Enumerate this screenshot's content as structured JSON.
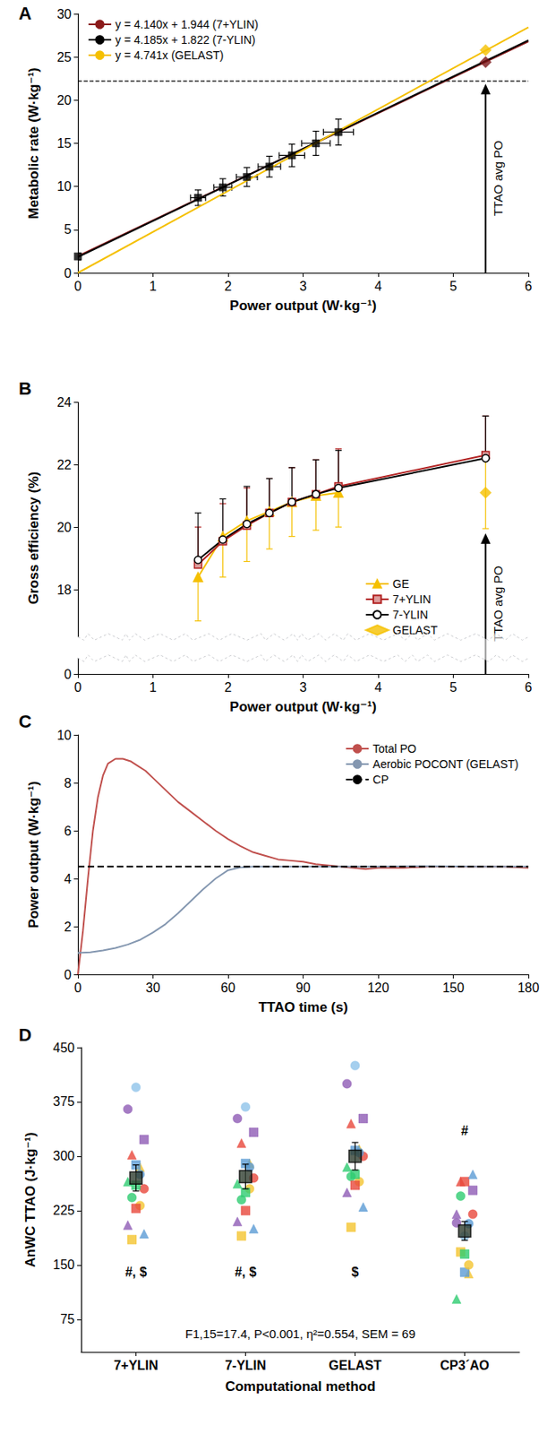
{
  "chart_data": [
    {
      "type": "scatter",
      "title": "A",
      "x_label": "Power output (W·kg⁻¹)",
      "y_label": "Metabolic rate (W·kg⁻¹)",
      "xlim": [
        0,
        6
      ],
      "xticks": [
        0,
        1,
        2,
        3,
        4,
        5,
        6
      ],
      "ylim": [
        0,
        30
      ],
      "yticks": [
        0,
        5,
        10,
        15,
        20,
        25,
        30
      ],
      "grid": false,
      "legend": "upper left",
      "series": [
        {
          "type": "line",
          "name": "y = 4.140x + 1.944 (7+YLIN)",
          "color": "#8b1a1a",
          "marker": "none",
          "line_style": "solid",
          "x": [
            0,
            6
          ],
          "values": [
            1.944,
            26.784
          ]
        },
        {
          "type": "line",
          "name": "y = 4.185x + 1.822 (7-YLIN)",
          "color": "#000000",
          "marker": "none",
          "line_style": "solid",
          "x": [
            0,
            6
          ],
          "values": [
            1.822,
            26.932
          ]
        },
        {
          "type": "line",
          "name": "y = 4.741x (GELAST)",
          "color": "#f5c000",
          "marker": "none",
          "line_style": "solid",
          "x": [
            0,
            6
          ],
          "values": [
            0,
            28.446
          ]
        },
        {
          "type": "scatter",
          "color": "#000000",
          "marker": "square",
          "x": [
            0,
            1.6,
            1.93,
            2.25,
            2.55,
            2.85,
            3.17,
            3.47
          ],
          "values": [
            1.9,
            8.7,
            9.9,
            11.1,
            12.3,
            13.6,
            15.0,
            16.3
          ],
          "y_errors": [
            0.4,
            0.9,
            1.0,
            1.1,
            1.2,
            1.3,
            1.4,
            1.5
          ],
          "x_errors": [
            0,
            0.1,
            0.12,
            0.14,
            0.15,
            0.17,
            0.19,
            0.2
          ]
        },
        {
          "type": "scatter",
          "color": "#f5c000",
          "marker": "diamond",
          "x": [
            5.43
          ],
          "values": [
            25.8
          ]
        },
        {
          "type": "scatter",
          "color": "#7b1416",
          "marker": "diamond",
          "x": [
            5.43
          ],
          "values": [
            24.4
          ]
        }
      ],
      "reference_lines": [
        {
          "y": 22.2,
          "line_style": "dashed",
          "color": "#000000"
        }
      ],
      "annotations": [
        {
          "text": "TTAO avg PO",
          "x": 5.43,
          "y_from": 0,
          "y_to": 21.9
        }
      ]
    },
    {
      "type": "line",
      "title": "B",
      "x_label": "Power output (W·kg⁻¹)",
      "y_label": "Gross efficiency (%)",
      "xlim": [
        0,
        6
      ],
      "xticks": [
        0,
        1,
        2,
        3,
        4,
        5,
        6
      ],
      "ylim": [
        0,
        24
      ],
      "yticks": [
        0,
        18,
        20,
        22,
        24
      ],
      "grid": false,
      "legend": "lower right",
      "series": [
        {
          "type": "line",
          "name": "GE",
          "color": "#f5c000",
          "marker": "triangle",
          "line_style": "solid",
          "x": [
            1.6,
            1.93,
            2.25,
            2.55,
            2.85,
            3.17,
            3.47
          ],
          "values": [
            18.4,
            19.7,
            20.2,
            20.5,
            20.8,
            21.0,
            21.1
          ],
          "errors": [
            1.4,
            1.3,
            1.3,
            1.2,
            1.1,
            1.1,
            1.1
          ]
        },
        {
          "type": "line",
          "name": "7+YLIN",
          "color": "#b22222",
          "marker": "square",
          "line_style": "solid",
          "x": [
            1.6,
            1.93,
            2.25,
            2.55,
            2.85,
            3.17,
            3.47,
            5.43
          ],
          "values": [
            18.8,
            19.55,
            20.05,
            20.45,
            20.8,
            21.05,
            21.3,
            22.3
          ],
          "errors": [
            1.2,
            1.2,
            1.2,
            1.1,
            1.1,
            1.1,
            1.2,
            1.25
          ]
        },
        {
          "type": "line",
          "name": "7-YLIN",
          "color": "#000000",
          "marker": "circle",
          "line_style": "solid",
          "x": [
            1.6,
            1.93,
            2.25,
            2.55,
            2.85,
            3.17,
            3.47,
            5.43
          ],
          "values": [
            18.95,
            19.6,
            20.1,
            20.45,
            20.8,
            21.05,
            21.25,
            22.2
          ],
          "errors": [
            1.5,
            1.3,
            1.2,
            1.1,
            1.1,
            1.1,
            1.2,
            1.35
          ]
        },
        {
          "type": "scatter",
          "name": "GELAST",
          "color": "#f5c000",
          "marker": "diamond",
          "x": [
            5.43
          ],
          "values": [
            21.1
          ],
          "errors": [
            1.15
          ]
        }
      ],
      "annotations": [
        {
          "text": "TTAO avg PO",
          "x": 5.43,
          "y_from": 0,
          "y_to": 19.8
        }
      ]
    },
    {
      "type": "line",
      "title": "C",
      "x_label": "TTAO time (s)",
      "y_label": "Power output (W·kg⁻¹)",
      "xlim": [
        0,
        180
      ],
      "xticks": [
        0,
        30,
        60,
        90,
        120,
        150,
        180
      ],
      "ylim": [
        0,
        10
      ],
      "yticks": [
        0,
        2,
        4,
        6,
        8,
        10
      ],
      "grid": false,
      "legend": "upper right",
      "series": [
        {
          "type": "line",
          "name": "Total PO",
          "color": "#c0504d",
          "marker": "none",
          "line_style": "solid",
          "x": [
            0,
            2,
            4,
            6,
            8,
            10,
            12,
            15,
            18,
            21,
            24,
            27,
            30,
            35,
            40,
            45,
            50,
            55,
            60,
            65,
            70,
            75,
            80,
            85,
            90,
            95,
            100,
            105,
            110,
            115,
            120,
            130,
            140,
            150,
            160,
            170,
            180
          ],
          "values": [
            0,
            1.8,
            4.0,
            6.0,
            7.4,
            8.3,
            8.8,
            9.0,
            9.0,
            8.9,
            8.7,
            8.5,
            8.2,
            7.7,
            7.2,
            6.8,
            6.4,
            6.0,
            5.65,
            5.35,
            5.1,
            4.95,
            4.8,
            4.75,
            4.7,
            4.6,
            4.55,
            4.5,
            4.45,
            4.4,
            4.45,
            4.45,
            4.5,
            4.5,
            4.5,
            4.5,
            4.45
          ]
        },
        {
          "type": "line",
          "name": "Aerobic POCONT (GELAST)",
          "color": "#8497b0",
          "marker": "none",
          "line_style": "solid",
          "x": [
            0,
            5,
            10,
            15,
            20,
            25,
            30,
            35,
            40,
            45,
            50,
            55,
            60,
            65,
            70,
            80,
            100,
            120,
            140,
            160,
            180
          ],
          "values": [
            0.9,
            0.92,
            1.0,
            1.1,
            1.25,
            1.45,
            1.75,
            2.1,
            2.55,
            3.05,
            3.55,
            4.0,
            4.35,
            4.47,
            4.5,
            4.5,
            4.5,
            4.5,
            4.52,
            4.5,
            4.5
          ]
        },
        {
          "type": "line",
          "name": "CP",
          "color": "#000000",
          "marker": "none",
          "line_style": "dashed",
          "x": [
            0,
            180
          ],
          "values": [
            4.5,
            4.5
          ]
        }
      ]
    },
    {
      "type": "scatter",
      "title": "D",
      "x_label": "Computational method",
      "y_label": "AnWC TTAO (J·kg⁻¹)",
      "categories": [
        "7+YLIN",
        "7-YLIN",
        "GELAST",
        "CP3´AO"
      ],
      "ylim": [
        30,
        450
      ],
      "yticks": [
        75,
        150,
        225,
        300,
        375,
        450
      ],
      "grid": false,
      "series": [
        {
          "color": "#8ec3ea",
          "marker": "circle",
          "values": [
            395,
            368,
            425,
            190
          ]
        },
        {
          "color": "#8e5bb5",
          "marker": "circle",
          "values": [
            365,
            352,
            400,
            208
          ]
        },
        {
          "color": "#8e5bb5",
          "marker": "square",
          "values": [
            323,
            333,
            352,
            253
          ]
        },
        {
          "color": "#e8473b",
          "marker": "triangle",
          "values": [
            302,
            318,
            345,
            265
          ]
        },
        {
          "color": "#f4c430",
          "marker": "triangle",
          "values": [
            285,
            290,
            310,
            138
          ]
        },
        {
          "color": "#5b9bd5",
          "marker": "square",
          "values": [
            288,
            290,
            308,
            140
          ]
        },
        {
          "color": "#2ecc71",
          "marker": "triangle",
          "values": [
            265,
            262,
            285,
            103
          ]
        },
        {
          "color": "#e8473b",
          "marker": "circle",
          "values": [
            255,
            270,
            300,
            220
          ]
        },
        {
          "color": "#2ecc71",
          "marker": "circle",
          "values": [
            243,
            240,
            272,
            245
          ]
        },
        {
          "color": "#f4c430",
          "marker": "circle",
          "values": [
            232,
            255,
            265,
            150
          ]
        },
        {
          "color": "#e8473b",
          "marker": "square",
          "values": [
            228,
            225,
            260,
            265
          ]
        },
        {
          "color": "#8e5bb5",
          "marker": "triangle",
          "values": [
            205,
            210,
            250,
            220
          ]
        },
        {
          "color": "#5b9bd5",
          "marker": "triangle",
          "values": [
            193,
            200,
            230,
            275
          ]
        },
        {
          "color": "#f4c430",
          "marker": "square",
          "values": [
            185,
            190,
            202,
            168
          ]
        },
        {
          "color": "#5b9bd5",
          "marker": "circle",
          "values": [
            275,
            285,
            305,
            207
          ]
        },
        {
          "color": "#2ecc71",
          "marker": "square",
          "values": [
            260,
            250,
            275,
            165
          ]
        },
        {
          "color": "#2f3d2f",
          "marker": "square",
          "values": [
            270,
            272,
            300,
            197
          ],
          "errors": [
            18,
            17,
            19,
            13
          ]
        }
      ],
      "annotations": [
        {
          "text": "#, $",
          "category": "7+YLIN",
          "y": 140
        },
        {
          "text": "#, $",
          "category": "7-YLIN",
          "y": 140
        },
        {
          "text": "$",
          "category": "GELAST",
          "y": 140
        },
        {
          "text": "#",
          "category": "CP3´AO",
          "y": 335
        },
        {
          "text": "F1,15=17.4, P<0.001, η²=0.554, SEM = 69",
          "y": 55
        }
      ]
    }
  ]
}
